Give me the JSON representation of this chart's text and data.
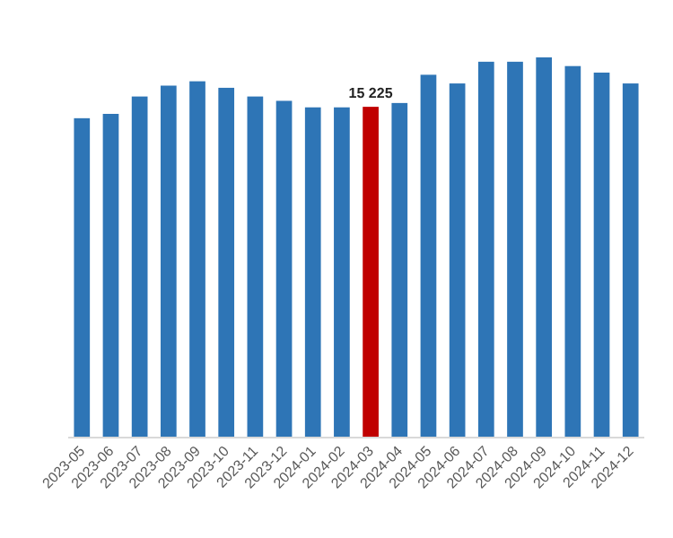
{
  "chart_data": {
    "type": "bar",
    "categories": [
      "2023-05",
      "2023-06",
      "2023-07",
      "2023-08",
      "2023-09",
      "2023-10",
      "2023-11",
      "2023-12",
      "2024-01",
      "2024-02",
      "2024-03",
      "2024-04",
      "2024-05",
      "2024-06",
      "2024-07",
      "2024-08",
      "2024-09",
      "2024-10",
      "2024-11",
      "2024-12"
    ],
    "values": [
      14700,
      14900,
      15700,
      16200,
      16400,
      16100,
      15700,
      15500,
      15200,
      15200,
      15225,
      15400,
      16700,
      16300,
      17300,
      17300,
      17500,
      17100,
      16800,
      16300
    ],
    "colors": [
      "#2e75b6",
      "#2e75b6",
      "#2e75b6",
      "#2e75b6",
      "#2e75b6",
      "#2e75b6",
      "#2e75b6",
      "#2e75b6",
      "#2e75b6",
      "#2e75b6",
      "#c00000",
      "#2e75b6",
      "#2e75b6",
      "#2e75b6",
      "#2e75b6",
      "#2e75b6",
      "#2e75b6",
      "#2e75b6",
      "#2e75b6",
      "#2e75b6"
    ],
    "value_labels": [
      null,
      null,
      null,
      null,
      null,
      null,
      null,
      null,
      null,
      null,
      "15 225",
      null,
      null,
      null,
      null,
      null,
      null,
      null,
      null,
      null
    ],
    "data_labels": false
  }
}
